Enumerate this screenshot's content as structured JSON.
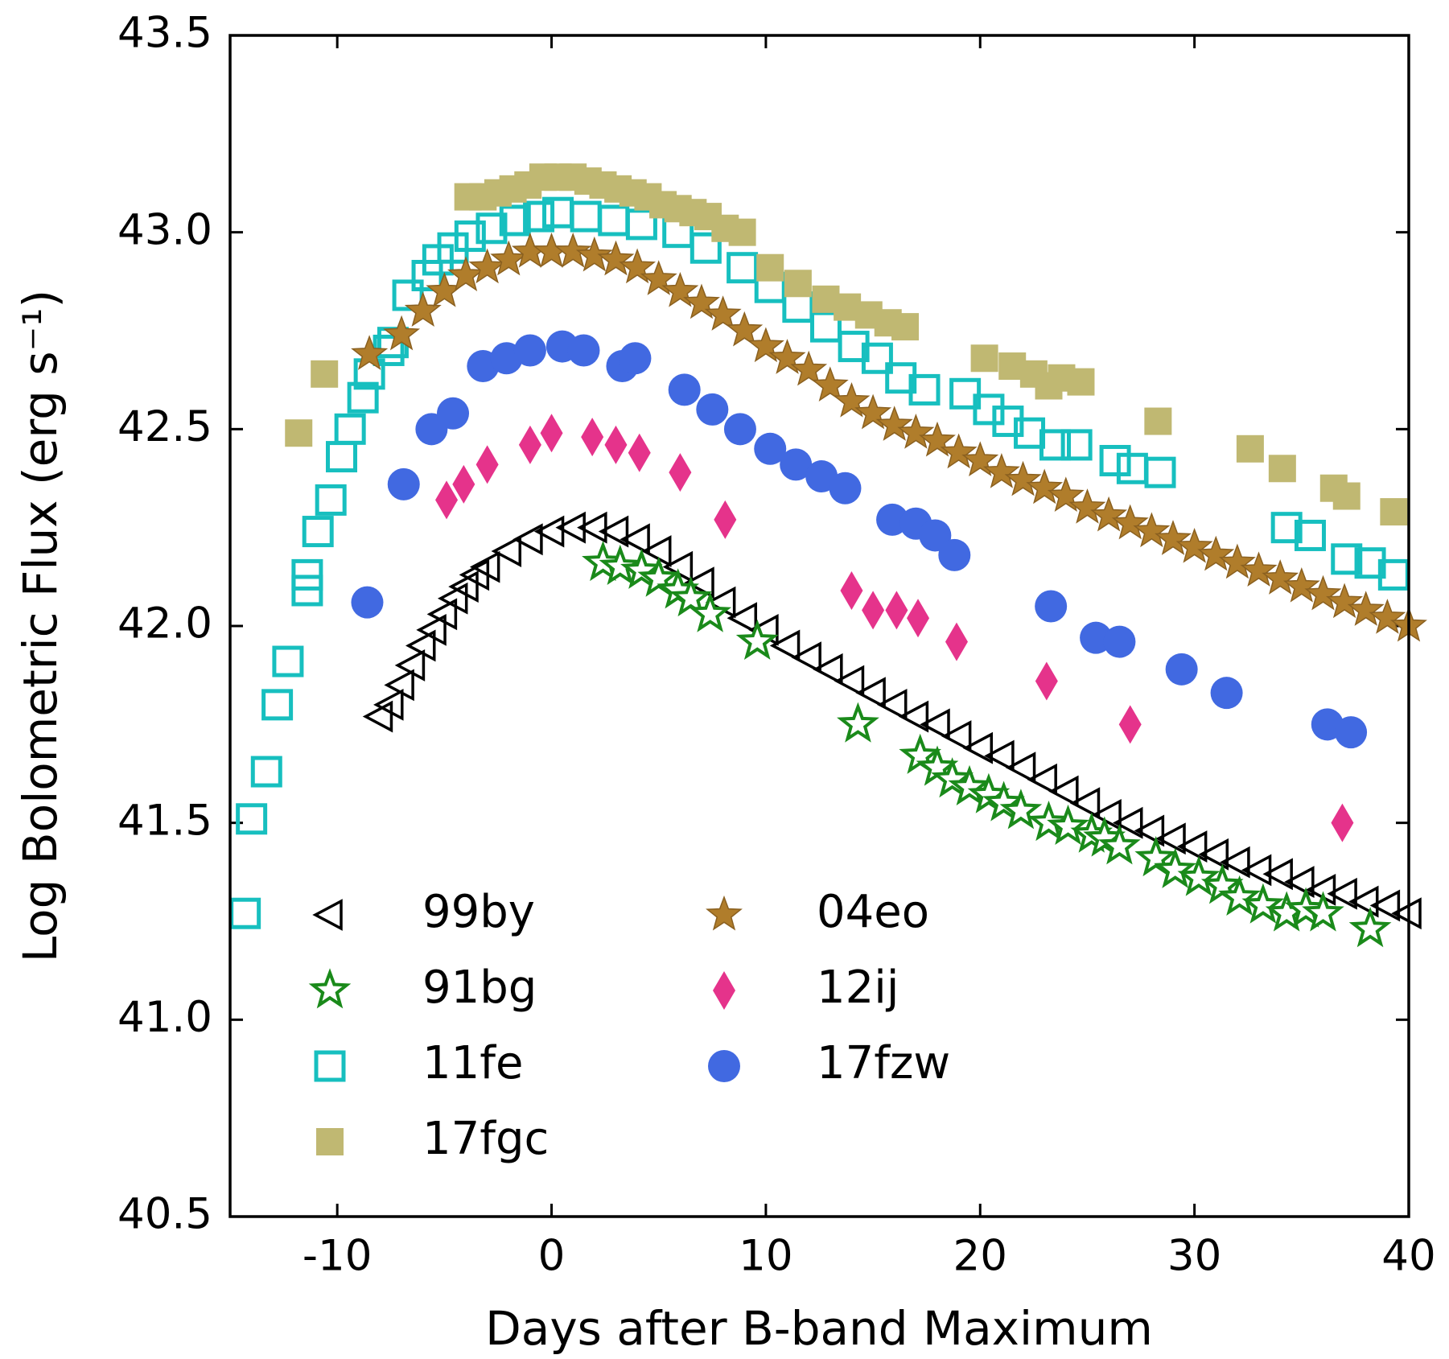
{
  "chart_data": {
    "type": "scatter",
    "xlabel": "Days after B-band Maximum",
    "ylabel": "Log Bolometric Flux (erg s⁻¹)",
    "xlim": [
      -15,
      40
    ],
    "xticks": [
      -10,
      0,
      10,
      20,
      30,
      40
    ],
    "ylim": [
      40.5,
      43.5
    ],
    "yticks": [
      {
        "value": 40.5,
        "label": "40.5"
      },
      {
        "value": 41,
        "label": "41.0"
      },
      {
        "value": 41.5,
        "label": "41.5"
      },
      {
        "value": 42,
        "label": "42.0"
      },
      {
        "value": 42.5,
        "label": "42.5"
      },
      {
        "value": 43,
        "label": "43.0"
      },
      {
        "value": 43.5,
        "label": "43.5"
      }
    ],
    "legend": "lower left",
    "series": [
      {
        "name": "99by",
        "color": "#000000",
        "marker": "triangle-left",
        "filled": false,
        "x": [
          -8,
          -7.5,
          -7,
          -6.5,
          -6,
          -5.5,
          -5,
          -4.5,
          -4,
          -3.5,
          -3,
          -2,
          -1,
          0,
          1,
          2,
          3,
          4,
          5,
          6,
          7,
          8,
          9,
          10,
          11,
          12,
          13,
          14,
          15,
          16,
          17,
          18,
          19,
          20,
          21,
          22,
          23,
          24,
          25,
          26,
          27,
          28,
          29,
          30,
          31,
          32,
          33,
          34,
          35,
          36,
          37,
          38,
          39,
          40
        ],
        "values": [
          41.77,
          41.8,
          41.85,
          41.9,
          41.95,
          41.99,
          42.03,
          42.07,
          42.1,
          42.13,
          42.15,
          42.19,
          42.22,
          42.24,
          42.25,
          42.25,
          42.24,
          42.22,
          42.19,
          42.15,
          42.11,
          42.06,
          42.02,
          41.99,
          41.95,
          41.92,
          41.89,
          41.86,
          41.83,
          41.8,
          41.77,
          41.75,
          41.72,
          41.69,
          41.67,
          41.64,
          41.61,
          41.58,
          41.55,
          41.52,
          41.5,
          41.48,
          41.46,
          41.44,
          41.42,
          41.4,
          41.38,
          41.37,
          41.35,
          41.33,
          41.32,
          41.3,
          41.29,
          41.27
        ]
      },
      {
        "name": "91bg",
        "color": "#1a8a1a",
        "marker": "star",
        "filled": false,
        "x": [
          2.4,
          3.2,
          4.2,
          5.0,
          5.9,
          6.5,
          7.4,
          9.6,
          14.3,
          17.2,
          18.0,
          18.7,
          19.5,
          20.4,
          21.1,
          21.9,
          23.2,
          24.1,
          25.2,
          25.8,
          26.5,
          28.2,
          29.1,
          30.2,
          31.3,
          32.1,
          33.2,
          34.3,
          35.2,
          36.0,
          38.2
        ],
        "values": [
          42.16,
          42.15,
          42.14,
          42.12,
          42.09,
          42.07,
          42.03,
          41.96,
          41.75,
          41.67,
          41.64,
          41.61,
          41.59,
          41.57,
          41.55,
          41.53,
          41.5,
          41.49,
          41.47,
          41.46,
          41.44,
          41.41,
          41.38,
          41.36,
          41.34,
          41.31,
          41.29,
          41.27,
          41.28,
          41.27,
          41.23
        ]
      },
      {
        "name": "11fe",
        "color": "#17bfbf",
        "marker": "square",
        "filled": false,
        "x": [
          -14.3,
          -14.0,
          -13.3,
          -12.8,
          -12.3,
          -11.4,
          -11.4,
          -10.9,
          -10.3,
          -9.8,
          -9.4,
          -8.8,
          -8.5,
          -7.6,
          -7.4,
          -6.7,
          -5.8,
          -5.3,
          -4.6,
          -3.8,
          -2.8,
          -1.7,
          -0.6,
          0.3,
          1.6,
          2.9,
          4.2,
          5.9,
          7.2,
          8.9,
          10.2,
          11.5,
          12.8,
          14.1,
          15.2,
          16.3,
          17.4,
          19.3,
          20.4,
          21.3,
          22.3,
          23.5,
          24.5,
          26.3,
          27.1,
          28.4,
          34.3,
          35.4,
          37.1,
          38.2,
          39.3
        ],
        "values": [
          41.27,
          41.51,
          41.63,
          41.8,
          41.91,
          42.09,
          42.13,
          42.24,
          42.32,
          42.43,
          42.5,
          42.58,
          42.64,
          42.7,
          42.72,
          42.84,
          42.89,
          42.93,
          42.96,
          42.99,
          43.01,
          43.03,
          43.04,
          43.05,
          43.04,
          43.03,
          43.02,
          43.0,
          42.96,
          42.91,
          42.86,
          42.81,
          42.76,
          42.71,
          42.68,
          42.63,
          42.6,
          42.59,
          42.55,
          42.52,
          42.49,
          42.46,
          42.46,
          42.42,
          42.4,
          42.39,
          42.25,
          42.23,
          42.17,
          42.16,
          42.13
        ]
      },
      {
        "name": "17fgc",
        "color": "#c0b872",
        "marker": "square",
        "filled": true,
        "x": [
          -11.8,
          -10.6,
          -3.9,
          -3.2,
          -2.5,
          -1.8,
          -1.1,
          -0.4,
          0.3,
          1.0,
          1.7,
          2.4,
          3.1,
          3.8,
          4.5,
          5.2,
          5.9,
          6.6,
          7.3,
          8.1,
          8.9,
          10.2,
          11.5,
          12.8,
          13.8,
          14.8,
          15.7,
          16.5,
          20.2,
          21.5,
          22.5,
          23.2,
          23.8,
          24.7,
          28.3,
          32.6,
          34.1,
          36.5,
          37.1,
          39.3
        ],
        "values": [
          42.49,
          42.64,
          43.09,
          43.09,
          43.1,
          43.11,
          43.12,
          43.14,
          43.14,
          43.14,
          43.13,
          43.12,
          43.11,
          43.1,
          43.09,
          43.07,
          43.06,
          43.05,
          43.04,
          43.01,
          43.0,
          42.91,
          42.87,
          42.83,
          42.81,
          42.79,
          42.77,
          42.76,
          42.68,
          42.66,
          42.64,
          42.61,
          42.63,
          42.62,
          42.52,
          42.45,
          42.4,
          42.35,
          42.33,
          42.29
        ]
      },
      {
        "name": "04eo",
        "color": "#b07d2b",
        "marker": "star",
        "filled": true,
        "x": [
          -8.5,
          -7,
          -6,
          -5,
          -4,
          -3,
          -2,
          -1,
          0,
          1,
          2,
          3,
          4,
          5,
          6,
          7,
          8,
          9,
          10,
          11,
          12,
          13,
          14,
          15,
          16,
          17,
          18,
          19,
          20,
          21,
          22,
          23,
          24,
          25,
          26,
          27,
          28,
          29,
          30,
          31,
          32,
          33,
          34,
          35,
          36,
          37,
          38,
          39,
          40
        ],
        "values": [
          42.69,
          42.74,
          42.8,
          42.85,
          42.89,
          42.91,
          42.93,
          42.95,
          42.95,
          42.95,
          42.94,
          42.93,
          42.91,
          42.88,
          42.85,
          42.82,
          42.79,
          42.75,
          42.71,
          42.68,
          42.65,
          42.61,
          42.57,
          42.54,
          42.51,
          42.49,
          42.47,
          42.44,
          42.42,
          42.39,
          42.37,
          42.35,
          42.33,
          42.3,
          42.28,
          42.26,
          42.24,
          42.22,
          42.2,
          42.18,
          42.16,
          42.14,
          42.12,
          42.1,
          42.08,
          42.06,
          42.04,
          42.02,
          42.0
        ]
      },
      {
        "name": "12ij",
        "color": "#e5338b",
        "marker": "diamond",
        "filled": true,
        "x": [
          -4.9,
          -4.1,
          -3.0,
          -1.0,
          0.0,
          1.9,
          3.0,
          4.1,
          6.0,
          8.1,
          14.0,
          15.0,
          16.1,
          17.1,
          18.9,
          23.1,
          27.0,
          36.9
        ],
        "values": [
          42.32,
          42.36,
          42.41,
          42.46,
          42.49,
          42.48,
          42.46,
          42.44,
          42.39,
          42.27,
          42.09,
          42.04,
          42.04,
          42.02,
          41.96,
          41.86,
          41.75,
          41.5
        ]
      },
      {
        "name": "17fzw",
        "color": "#4169e1",
        "marker": "circle",
        "filled": true,
        "x": [
          -8.6,
          -6.9,
          -5.6,
          -4.6,
          -3.2,
          -2.1,
          -1.0,
          0.5,
          1.5,
          3.3,
          3.9,
          6.2,
          7.5,
          8.8,
          10.2,
          11.4,
          12.6,
          13.7,
          15.9,
          17.0,
          17.9,
          18.8,
          23.3,
          25.4,
          26.5,
          29.4,
          31.5,
          36.2,
          37.3
        ],
        "values": [
          42.06,
          42.36,
          42.5,
          42.54,
          42.66,
          42.68,
          42.7,
          42.71,
          42.7,
          42.66,
          42.68,
          42.6,
          42.55,
          42.5,
          42.45,
          42.41,
          42.38,
          42.35,
          42.27,
          42.26,
          42.23,
          42.18,
          42.05,
          41.97,
          41.96,
          41.89,
          41.83,
          41.75,
          41.73
        ]
      }
    ]
  }
}
